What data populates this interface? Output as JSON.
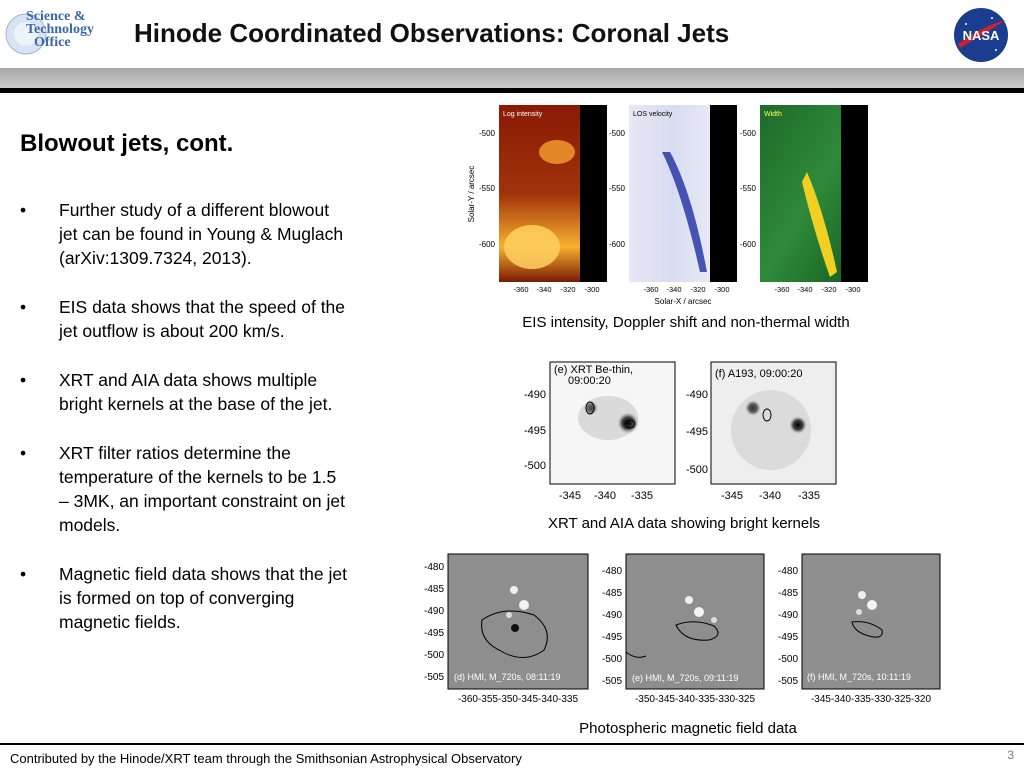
{
  "header": {
    "logo_text": [
      "Science &",
      "Technology",
      "Office"
    ],
    "title": "Hinode Coordinated Observations:  Coronal Jets",
    "nasa_logo_text": "NASA"
  },
  "slide": {
    "subtitle": "Blowout jets, cont.",
    "bullet_char": "•",
    "bullets": [
      "Further study of a different blowout jet can be found in Young & Muglach (arXiv:1309.7324, 2013).",
      " EIS data shows that the speed of the jet outflow is about 200 km/s.",
      " XRT and AIA data shows multiple bright kernels at the base of the jet.",
      " XRT filter ratios determine the temperature of the kernels to be 1.5 – 3MK, an important constraint on jet models.",
      "Magnetic field data shows that the jet is formed on top of converging magnetic fields."
    ]
  },
  "eis": {
    "panel_labels": [
      "Log intensity",
      "LOS velocity",
      "Width"
    ],
    "y_ticks": [
      "-500",
      "-550",
      "-600"
    ],
    "x_ticks": [
      "-360",
      "-340",
      "-320",
      "-300"
    ],
    "ylabel": "Solar-Y / arcsec",
    "xlabel": "Solar-X / arcsec",
    "caption": "EIS intensity, Doppler shift and non-thermal width"
  },
  "xrt_aia": {
    "panel_labels": [
      "(e) XRT Be-thin,",
      "09:00:20",
      "(f) A193, 09:00:20"
    ],
    "y_ticks": [
      "-490",
      "-495",
      "-500"
    ],
    "x_ticks": [
      "-345",
      "-340",
      "-335"
    ],
    "caption": "XRT and AIA data showing bright kernels"
  },
  "hmi": {
    "panel_labels": [
      "(d) HMI, M_720s, 08:11:19",
      "(e) HMI, M_720s, 09:11:19",
      "(f) HMI, M_720s, 10:11:19"
    ],
    "y_ticks": [
      "-480",
      "-485",
      "-490",
      "-495",
      "-500",
      "-505"
    ],
    "x_ticks_1": "-360-355-350-345-340-335",
    "x_ticks_2": "-350-345-340-335-330-325",
    "x_ticks_3": "-345-340-335-330-325-320",
    "caption": "Photospheric magnetic field data"
  },
  "footer": {
    "text": "Contributed by the Hinode/XRT team through the Smithsonian Astrophysical Observatory",
    "page_number": "3"
  },
  "colors": {
    "title": "#111111",
    "band": "#b8b8b8",
    "logo_blue": "#3a67a8",
    "nasa_blue": "#1b3d8f",
    "nasa_red": "#d02030"
  }
}
